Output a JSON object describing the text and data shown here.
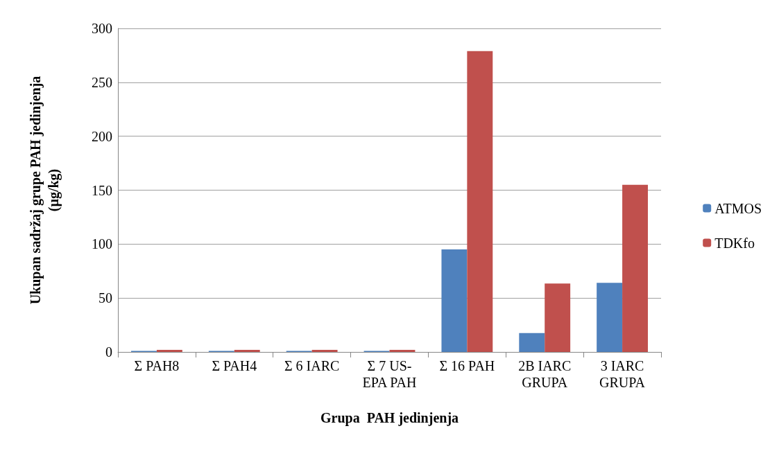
{
  "chart_data": {
    "type": "bar",
    "xlabel": "Grupa  PAH jedinjenja",
    "ylabel": "Ukupan sadržaj grupe PAH jedinjenja\n(µg/kg)",
    "categories": [
      "Σ PAH8",
      "Σ PAH4",
      "Σ 6 IARC",
      "Σ 7 US-\nEPA PAH",
      "Σ 16 PAH",
      "2B IARC\nGRUPA",
      "3 IARC\nGRUPA"
    ],
    "series": [
      {
        "name": "ATMOS",
        "color": "#4f81bd",
        "values": [
          1,
          1,
          1,
          1,
          95,
          17.5,
          64
        ]
      },
      {
        "name": "TDKfo",
        "color": "#c0504d",
        "values": [
          2,
          2,
          2,
          2,
          279,
          63.5,
          155
        ]
      }
    ],
    "ylim": [
      0,
      300
    ],
    "yticks": [
      0,
      50,
      100,
      150,
      200,
      250,
      300
    ],
    "grid": "y",
    "legend": "right"
  }
}
